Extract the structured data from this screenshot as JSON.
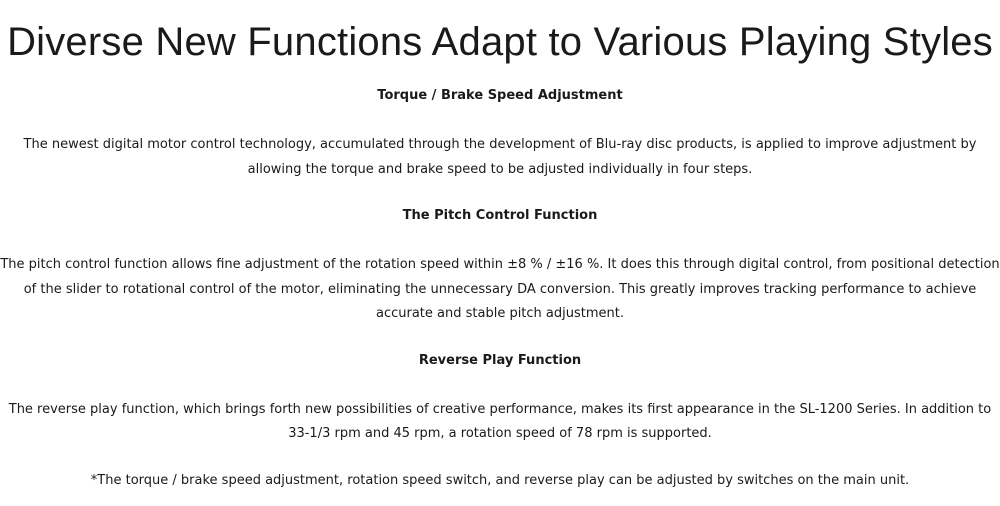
{
  "title": "Diverse New Functions Adapt to Various Playing Styles",
  "sections": [
    {
      "heading": "Torque / Brake Speed Adjustment",
      "lines": [
        "The newest digital motor control technology, accumulated through the development of Blu-ray disc products, is applied to improve adjustment by",
        "allowing the torque and brake speed to be adjusted individually in four steps."
      ]
    },
    {
      "heading": "The Pitch Control Function",
      "lines": [
        "The pitch control function allows fine adjustment of the rotation speed within ±8 % / ±16 %. It does this through digital control, from positional detection",
        "of the slider to rotational control of the motor, eliminating the unnecessary DA conversion. This greatly improves tracking performance to achieve",
        "accurate and stable pitch adjustment."
      ]
    },
    {
      "heading": "Reverse Play Function",
      "lines": [
        "The reverse play function, which brings forth new possibilities of creative performance, makes its first appearance in the SL-1200 Series. In addition to",
        "33-1/3 rpm and 45 rpm, a rotation speed of 78 rpm is supported."
      ]
    }
  ],
  "note": "*The torque / brake speed adjustment, rotation speed switch, and reverse play can be adjusted by switches on the main unit."
}
